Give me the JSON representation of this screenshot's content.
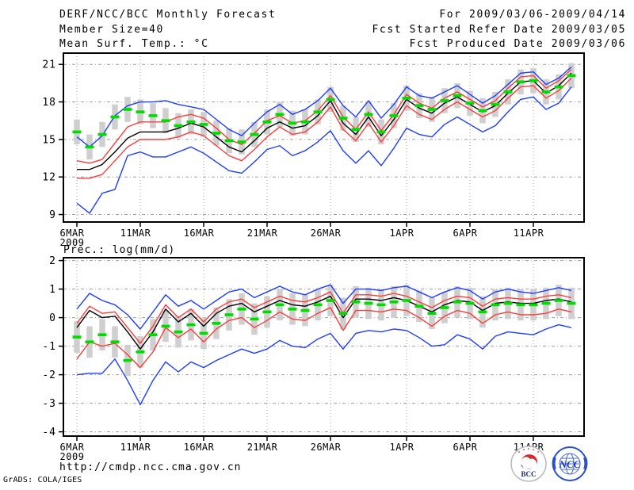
{
  "header": {
    "title": "DERF/NCC/BCC Monthly Forecast",
    "member_size": "Member Size=40",
    "temp_label": "Mean Surf. Temp.: °C",
    "period": "For 2009/03/06-2009/04/14",
    "refer_date": "Fcst Started Refer Date 2009/03/05",
    "produced_date": "Fcst Produced Date 2009/03/06"
  },
  "footer": {
    "url": "http://cmdp.ncc.cma.gov.cn",
    "credit": "GrADS: COLA/IGES",
    "logos": {
      "bcc": "BCC",
      "ncc": "NCC"
    }
  },
  "colors": {
    "envelope": "#1e3cff",
    "quantile": "#fa3c3c",
    "mean": "#000000",
    "median": "#00dc00",
    "bar": "#cfcfcf",
    "grid": "#9e9e9e",
    "frame": "#000000"
  },
  "chart_data": [
    {
      "type": "line",
      "title": "Mean Surf. Temp.: °C",
      "ylabel": "°C",
      "ylim": [
        8.4,
        21.9
      ],
      "y_ticks": [
        9,
        12,
        15,
        18,
        21
      ],
      "x_ticks": [
        {
          "day": 0,
          "label": "6MAR",
          "sub": "2009"
        },
        {
          "day": 5,
          "label": "11MAR"
        },
        {
          "day": 10,
          "label": "16MAR"
        },
        {
          "day": 15,
          "label": "21MAR"
        },
        {
          "day": 20,
          "label": "26MAR"
        },
        {
          "day": 26,
          "label": "1APR"
        },
        {
          "day": 31,
          "label": "6APR"
        },
        {
          "day": 36,
          "label": "11APR"
        }
      ],
      "series": [
        {
          "name": "ens-max",
          "color": "#1e3cff",
          "values": [
            15.2,
            14.4,
            15.3,
            16.9,
            17.7,
            18.0,
            18.0,
            18.1,
            17.8,
            17.6,
            17.4,
            16.6,
            15.8,
            15.3,
            16.3,
            17.2,
            17.8,
            17.0,
            17.4,
            18.1,
            19.1,
            17.7,
            16.8,
            18.1,
            16.7,
            17.8,
            19.2,
            18.5,
            18.3,
            18.8,
            19.3,
            18.6,
            17.9,
            18.5,
            19.4,
            20.3,
            20.4,
            19.4,
            19.9,
            20.8
          ]
        },
        {
          "name": "ens-min",
          "color": "#1e3cff",
          "values": [
            9.9,
            9.1,
            10.7,
            11.0,
            13.7,
            14.0,
            13.6,
            13.6,
            14.0,
            14.4,
            13.9,
            13.2,
            12.5,
            12.3,
            13.2,
            14.2,
            14.5,
            13.7,
            14.1,
            14.8,
            15.7,
            14.1,
            13.1,
            14.1,
            12.9,
            14.3,
            15.9,
            15.4,
            15.2,
            16.2,
            16.8,
            16.2,
            15.6,
            16.1,
            17.2,
            18.2,
            18.4,
            17.4,
            17.9,
            19.2
          ]
        },
        {
          "name": "upper-quantile",
          "color": "#fa3c3c",
          "values": [
            13.3,
            13.1,
            13.4,
            14.7,
            16.0,
            16.4,
            16.4,
            16.4,
            16.8,
            17.0,
            16.7,
            15.9,
            15.0,
            14.6,
            15.5,
            16.5,
            16.9,
            16.3,
            16.5,
            17.3,
            18.5,
            16.8,
            15.8,
            17.2,
            15.7,
            17.0,
            18.6,
            17.9,
            17.5,
            18.3,
            18.8,
            18.2,
            17.6,
            18.1,
            19.1,
            20.0,
            20.1,
            19.1,
            19.7,
            20.6
          ]
        },
        {
          "name": "lower-quantile",
          "color": "#fa3c3c",
          "values": [
            11.9,
            11.9,
            12.2,
            13.3,
            14.4,
            15.0,
            15.0,
            15.0,
            15.2,
            15.6,
            15.3,
            14.5,
            13.7,
            13.3,
            14.2,
            15.2,
            16.0,
            15.4,
            15.6,
            16.4,
            17.6,
            15.8,
            14.9,
            16.3,
            14.8,
            16.1,
            17.7,
            17.0,
            16.6,
            17.4,
            18.0,
            17.4,
            16.8,
            17.3,
            18.3,
            19.2,
            19.3,
            18.3,
            18.9,
            19.9
          ]
        },
        {
          "name": "ens-mean",
          "color": "#000000",
          "values": [
            12.6,
            12.6,
            13.0,
            14.0,
            15.1,
            15.6,
            15.6,
            15.6,
            15.9,
            16.3,
            16.0,
            15.2,
            14.4,
            14.0,
            14.9,
            15.9,
            16.4,
            15.9,
            16.1,
            16.9,
            18.1,
            16.3,
            15.4,
            16.8,
            15.3,
            16.6,
            18.2,
            17.5,
            17.1,
            17.9,
            18.4,
            17.8,
            17.2,
            17.7,
            18.7,
            19.6,
            19.7,
            18.7,
            19.3,
            20.3
          ]
        }
      ],
      "bars": {
        "color": "#cfcfcf",
        "median_color": "#00dc00",
        "median": [
          15.6,
          14.4,
          15.4,
          16.8,
          17.4,
          17.2,
          16.9,
          16.5,
          16.1,
          16.4,
          16.2,
          15.5,
          14.9,
          14.8,
          15.4,
          16.4,
          17.0,
          16.3,
          16.4,
          17.2,
          18.2,
          16.7,
          15.8,
          17.0,
          15.6,
          16.9,
          18.3,
          17.7,
          17.4,
          18.1,
          18.5,
          17.9,
          17.3,
          17.8,
          18.8,
          19.6,
          19.7,
          18.8,
          19.2,
          20.1
        ],
        "low": [
          14.6,
          13.4,
          14.4,
          15.8,
          16.4,
          16.2,
          15.9,
          15.5,
          15.1,
          15.4,
          15.2,
          14.5,
          13.9,
          13.8,
          14.4,
          15.4,
          16.0,
          15.3,
          15.4,
          16.2,
          17.2,
          15.7,
          14.8,
          16.0,
          14.6,
          15.9,
          17.3,
          16.7,
          16.4,
          17.1,
          17.5,
          16.9,
          16.3,
          16.8,
          17.8,
          18.6,
          18.7,
          17.8,
          18.2,
          19.1
        ],
        "high": [
          16.6,
          15.4,
          16.4,
          17.8,
          18.4,
          18.2,
          17.9,
          17.5,
          17.1,
          17.4,
          17.2,
          16.5,
          15.9,
          15.8,
          16.4,
          17.4,
          18.0,
          17.3,
          17.4,
          18.2,
          19.2,
          17.7,
          16.8,
          18.0,
          16.6,
          17.9,
          19.3,
          18.7,
          18.4,
          19.1,
          19.5,
          18.9,
          18.3,
          18.8,
          19.8,
          20.6,
          20.7,
          19.8,
          20.2,
          21.1
        ]
      }
    },
    {
      "type": "line",
      "title": "Prec.: log(mm/d)",
      "ylabel": "log(mm/d)",
      "ylim": [
        -4.15,
        2.1
      ],
      "y_ticks": [
        -4,
        -3,
        -2,
        -1,
        0,
        1,
        2
      ],
      "x_ticks": [
        {
          "day": 0,
          "label": "6MAR",
          "sub": "2009"
        },
        {
          "day": 5,
          "label": "11MAR"
        },
        {
          "day": 10,
          "label": "16MAR"
        },
        {
          "day": 15,
          "label": "21MAR"
        },
        {
          "day": 20,
          "label": "26MAR"
        },
        {
          "day": 26,
          "label": "1APR"
        },
        {
          "day": 31,
          "label": "6APR"
        },
        {
          "day": 36,
          "label": "11APR"
        }
      ],
      "series": [
        {
          "name": "ens-max",
          "color": "#1e3cff",
          "values": [
            0.3,
            0.85,
            0.6,
            0.45,
            0.1,
            -0.4,
            0.2,
            0.8,
            0.4,
            0.6,
            0.3,
            0.6,
            0.9,
            1.0,
            0.7,
            0.9,
            1.1,
            0.9,
            0.8,
            1.0,
            1.15,
            0.5,
            1.0,
            1.0,
            0.95,
            1.05,
            1.1,
            0.9,
            0.7,
            0.9,
            1.05,
            0.95,
            0.65,
            0.9,
            1.0,
            0.9,
            0.85,
            0.95,
            1.05,
            0.95
          ]
        },
        {
          "name": "ens-min",
          "color": "#1e3cff",
          "values": [
            -2.0,
            -1.95,
            -1.95,
            -1.45,
            -2.2,
            -3.05,
            -2.2,
            -1.55,
            -1.9,
            -1.55,
            -1.75,
            -1.5,
            -1.3,
            -1.1,
            -1.25,
            -1.1,
            -0.8,
            -1.0,
            -1.05,
            -0.75,
            -0.55,
            -1.1,
            -0.55,
            -0.45,
            -0.5,
            -0.4,
            -0.45,
            -0.7,
            -1.0,
            -0.95,
            -0.6,
            -0.75,
            -1.1,
            -0.65,
            -0.5,
            -0.55,
            -0.6,
            -0.4,
            -0.25,
            -0.35
          ]
        },
        {
          "name": "upper-quantile",
          "color": "#fa3c3c",
          "values": [
            -0.2,
            0.4,
            0.15,
            0.2,
            -0.35,
            -0.9,
            -0.3,
            0.45,
            0.0,
            0.3,
            -0.15,
            0.3,
            0.55,
            0.65,
            0.35,
            0.55,
            0.75,
            0.6,
            0.55,
            0.7,
            0.9,
            0.15,
            0.8,
            0.8,
            0.75,
            0.85,
            0.75,
            0.55,
            0.35,
            0.6,
            0.75,
            0.7,
            0.4,
            0.65,
            0.7,
            0.65,
            0.65,
            0.75,
            0.8,
            0.7
          ]
        },
        {
          "name": "lower-quantile",
          "color": "#fa3c3c",
          "values": [
            -1.45,
            -0.85,
            -1.0,
            -0.9,
            -1.3,
            -1.75,
            -1.2,
            -0.35,
            -0.7,
            -0.4,
            -0.85,
            -0.4,
            -0.1,
            0.0,
            -0.35,
            -0.1,
            0.2,
            -0.05,
            -0.1,
            0.15,
            0.35,
            -0.45,
            0.25,
            0.25,
            0.2,
            0.3,
            0.25,
            0.0,
            -0.3,
            0.05,
            0.25,
            0.15,
            -0.2,
            0.1,
            0.2,
            0.1,
            0.1,
            0.15,
            0.3,
            0.2
          ]
        },
        {
          "name": "ens-mean",
          "color": "#000000",
          "values": [
            -0.35,
            0.25,
            0.0,
            0.05,
            -0.5,
            -1.1,
            -0.5,
            0.3,
            -0.15,
            0.15,
            -0.3,
            0.15,
            0.4,
            0.5,
            0.2,
            0.4,
            0.6,
            0.45,
            0.4,
            0.55,
            0.75,
            0.0,
            0.65,
            0.65,
            0.6,
            0.7,
            0.6,
            0.4,
            0.2,
            0.45,
            0.6,
            0.55,
            0.25,
            0.5,
            0.55,
            0.5,
            0.5,
            0.6,
            0.65,
            0.55
          ]
        }
      ],
      "bars": {
        "color": "#cfcfcf",
        "median_color": "#00dc00",
        "median": [
          -0.68,
          -0.85,
          -0.6,
          -0.85,
          -1.5,
          -1.2,
          -0.6,
          -0.3,
          -0.5,
          -0.25,
          -0.55,
          -0.2,
          0.1,
          0.3,
          -0.05,
          0.2,
          0.45,
          0.3,
          0.25,
          0.45,
          0.6,
          0.15,
          0.55,
          0.5,
          0.45,
          0.55,
          0.6,
          0.4,
          0.15,
          0.35,
          0.55,
          0.5,
          0.2,
          0.45,
          0.5,
          0.45,
          0.45,
          0.5,
          0.6,
          0.5
        ],
        "low": [
          -1.23,
          -1.4,
          -1.15,
          -1.4,
          -2.05,
          -1.75,
          -1.15,
          -0.85,
          -1.05,
          -0.8,
          -1.1,
          -0.75,
          -0.45,
          -0.25,
          -0.6,
          -0.35,
          -0.1,
          -0.25,
          -0.3,
          -0.1,
          0.05,
          -0.4,
          0.0,
          -0.05,
          -0.1,
          0.0,
          0.05,
          -0.15,
          -0.4,
          -0.2,
          0.0,
          -0.05,
          -0.35,
          -0.1,
          -0.05,
          -0.1,
          -0.1,
          -0.05,
          0.05,
          -0.05
        ],
        "high": [
          -0.13,
          -0.3,
          -0.05,
          -0.3,
          -0.95,
          -0.65,
          -0.05,
          0.25,
          0.05,
          0.3,
          0.0,
          0.35,
          0.65,
          0.85,
          0.5,
          0.75,
          1.0,
          0.85,
          0.8,
          1.0,
          1.15,
          0.7,
          1.1,
          1.05,
          1.0,
          1.1,
          1.15,
          0.95,
          0.7,
          0.9,
          1.1,
          1.05,
          0.75,
          1.0,
          1.05,
          1.0,
          1.0,
          1.05,
          1.15,
          1.05
        ]
      }
    }
  ]
}
